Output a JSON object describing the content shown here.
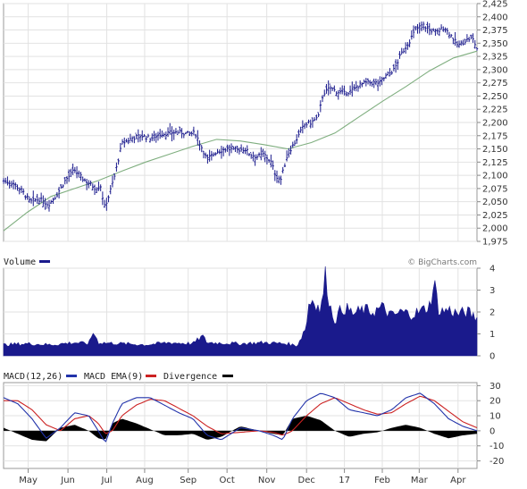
{
  "chart_data": [
    {
      "type": "ohlc",
      "name": "price-panel",
      "title": "",
      "ylim": [
        1975,
        2425
      ],
      "y_ticks": [
        1975,
        2000,
        2025,
        2050,
        2075,
        2100,
        2125,
        2150,
        2175,
        2200,
        2225,
        2250,
        2275,
        2300,
        2325,
        2350,
        2375,
        2400,
        2425
      ],
      "price_color": "#1a1a8c",
      "moving_average_color": "#7fae7f",
      "price_path": [
        [
          0,
          2090
        ],
        [
          0.02,
          2085
        ],
        [
          0.04,
          2070
        ],
        [
          0.055,
          2050
        ],
        [
          0.075,
          2055
        ],
        [
          0.095,
          2045
        ],
        [
          0.11,
          2060
        ],
        [
          0.13,
          2090
        ],
        [
          0.15,
          2110
        ],
        [
          0.165,
          2095
        ],
        [
          0.18,
          2085
        ],
        [
          0.195,
          2075
        ],
        [
          0.205,
          2080
        ],
        [
          0.213,
          2040
        ],
        [
          0.222,
          2060
        ],
        [
          0.235,
          2100
        ],
        [
          0.25,
          2160
        ],
        [
          0.27,
          2170
        ],
        [
          0.29,
          2175
        ],
        [
          0.31,
          2170
        ],
        [
          0.33,
          2178
        ],
        [
          0.35,
          2180
        ],
        [
          0.37,
          2182
        ],
        [
          0.39,
          2178
        ],
        [
          0.405,
          2180
        ],
        [
          0.415,
          2160
        ],
        [
          0.43,
          2130
        ],
        [
          0.45,
          2145
        ],
        [
          0.47,
          2150
        ],
        [
          0.49,
          2148
        ],
        [
          0.51,
          2150
        ],
        [
          0.52,
          2140
        ],
        [
          0.535,
          2135
        ],
        [
          0.55,
          2140
        ],
        [
          0.565,
          2125
        ],
        [
          0.575,
          2100
        ],
        [
          0.585,
          2090
        ],
        [
          0.6,
          2140
        ],
        [
          0.62,
          2170
        ],
        [
          0.635,
          2195
        ],
        [
          0.65,
          2200
        ],
        [
          0.665,
          2210
        ],
        [
          0.675,
          2255
        ],
        [
          0.69,
          2265
        ],
        [
          0.705,
          2258
        ],
        [
          0.72,
          2255
        ],
        [
          0.735,
          2260
        ],
        [
          0.75,
          2270
        ],
        [
          0.765,
          2275
        ],
        [
          0.78,
          2275
        ],
        [
          0.795,
          2275
        ],
        [
          0.81,
          2290
        ],
        [
          0.825,
          2300
        ],
        [
          0.84,
          2330
        ],
        [
          0.855,
          2350
        ],
        [
          0.87,
          2375
        ],
        [
          0.885,
          2385
        ],
        [
          0.9,
          2375
        ],
        [
          0.915,
          2370
        ],
        [
          0.93,
          2380
        ],
        [
          0.945,
          2365
        ],
        [
          0.96,
          2345
        ],
        [
          0.975,
          2355
        ],
        [
          0.99,
          2360
        ],
        [
          1,
          2340
        ]
      ],
      "moving_average_path": [
        [
          0,
          1995
        ],
        [
          0.05,
          2030
        ],
        [
          0.1,
          2060
        ],
        [
          0.15,
          2075
        ],
        [
          0.2,
          2090
        ],
        [
          0.25,
          2108
        ],
        [
          0.3,
          2125
        ],
        [
          0.35,
          2140
        ],
        [
          0.4,
          2155
        ],
        [
          0.45,
          2168
        ],
        [
          0.5,
          2165
        ],
        [
          0.55,
          2158
        ],
        [
          0.6,
          2150
        ],
        [
          0.65,
          2162
        ],
        [
          0.7,
          2180
        ],
        [
          0.75,
          2210
        ],
        [
          0.8,
          2240
        ],
        [
          0.85,
          2268
        ],
        [
          0.9,
          2298
        ],
        [
          0.95,
          2322
        ],
        [
          1,
          2335
        ]
      ]
    },
    {
      "type": "area",
      "name": "volume-panel",
      "label": "Volume",
      "credit": "© BigCharts.com",
      "ylim": [
        0,
        4
      ],
      "y_ticks": [
        0,
        1,
        2,
        3,
        4
      ],
      "color": "#1a1a8c",
      "values_path": [
        [
          0,
          0.5
        ],
        [
          0.05,
          0.55
        ],
        [
          0.1,
          0.5
        ],
        [
          0.15,
          0.6
        ],
        [
          0.18,
          0.55
        ],
        [
          0.19,
          1.1
        ],
        [
          0.2,
          0.6
        ],
        [
          0.25,
          0.55
        ],
        [
          0.3,
          0.5
        ],
        [
          0.35,
          0.6
        ],
        [
          0.4,
          0.55
        ],
        [
          0.42,
          0.9
        ],
        [
          0.43,
          0.6
        ],
        [
          0.5,
          0.55
        ],
        [
          0.55,
          0.6
        ],
        [
          0.6,
          0.55
        ],
        [
          0.62,
          0.45
        ],
        [
          0.63,
          0.9
        ],
        [
          0.64,
          1.4
        ],
        [
          0.645,
          2.4
        ],
        [
          0.655,
          2.6
        ],
        [
          0.67,
          2.0
        ],
        [
          0.68,
          3.7
        ],
        [
          0.69,
          2.2
        ],
        [
          0.7,
          1.6
        ],
        [
          0.71,
          2.0
        ],
        [
          0.72,
          2.2
        ],
        [
          0.74,
          1.9
        ],
        [
          0.76,
          2.1
        ],
        [
          0.78,
          2.0
        ],
        [
          0.8,
          2.2
        ],
        [
          0.82,
          1.8
        ],
        [
          0.84,
          2.0
        ],
        [
          0.86,
          1.9
        ],
        [
          0.88,
          2.0
        ],
        [
          0.9,
          2.3
        ],
        [
          0.91,
          3.3
        ],
        [
          0.92,
          2.0
        ],
        [
          0.94,
          2.1
        ],
        [
          0.96,
          1.9
        ],
        [
          0.98,
          2.0
        ],
        [
          1,
          1.7
        ]
      ]
    },
    {
      "type": "line",
      "name": "macd-panel",
      "ylim": [
        -25,
        32
      ],
      "y_ticks": [
        -20,
        -10,
        0,
        10,
        20,
        30
      ],
      "series": [
        {
          "name": "MACD(12,26)",
          "color": "#2233aa",
          "path": [
            [
              0,
              22
            ],
            [
              0.03,
              18
            ],
            [
              0.06,
              8
            ],
            [
              0.09,
              -5
            ],
            [
              0.12,
              2
            ],
            [
              0.15,
              12
            ],
            [
              0.18,
              10
            ],
            [
              0.2,
              0
            ],
            [
              0.215,
              -8
            ],
            [
              0.23,
              5
            ],
            [
              0.25,
              18
            ],
            [
              0.28,
              22
            ],
            [
              0.31,
              22
            ],
            [
              0.34,
              17
            ],
            [
              0.37,
              12
            ],
            [
              0.4,
              8
            ],
            [
              0.43,
              -3
            ],
            [
              0.46,
              -6
            ],
            [
              0.5,
              2
            ],
            [
              0.54,
              0
            ],
            [
              0.57,
              -3
            ],
            [
              0.59,
              -6
            ],
            [
              0.61,
              8
            ],
            [
              0.64,
              20
            ],
            [
              0.67,
              25
            ],
            [
              0.7,
              22
            ],
            [
              0.73,
              14
            ],
            [
              0.76,
              12
            ],
            [
              0.79,
              10
            ],
            [
              0.82,
              14
            ],
            [
              0.85,
              22
            ],
            [
              0.88,
              25
            ],
            [
              0.91,
              18
            ],
            [
              0.94,
              8
            ],
            [
              0.97,
              3
            ],
            [
              1,
              0
            ]
          ]
        },
        {
          "name": "MACD EMA(9)",
          "color": "#cc2222",
          "path": [
            [
              0,
              20
            ],
            [
              0.03,
              20
            ],
            [
              0.06,
              14
            ],
            [
              0.09,
              4
            ],
            [
              0.12,
              0
            ],
            [
              0.15,
              8
            ],
            [
              0.18,
              10
            ],
            [
              0.2,
              5
            ],
            [
              0.215,
              -2
            ],
            [
              0.23,
              0
            ],
            [
              0.25,
              10
            ],
            [
              0.28,
              17
            ],
            [
              0.31,
              21
            ],
            [
              0.34,
              20
            ],
            [
              0.37,
              15
            ],
            [
              0.4,
              10
            ],
            [
              0.43,
              3
            ],
            [
              0.46,
              -2
            ],
            [
              0.5,
              -1
            ],
            [
              0.54,
              0
            ],
            [
              0.57,
              -1
            ],
            [
              0.59,
              -3
            ],
            [
              0.61,
              0
            ],
            [
              0.64,
              10
            ],
            [
              0.67,
              18
            ],
            [
              0.7,
              22
            ],
            [
              0.73,
              18
            ],
            [
              0.76,
              14
            ],
            [
              0.79,
              11
            ],
            [
              0.82,
              12
            ],
            [
              0.85,
              18
            ],
            [
              0.88,
              23
            ],
            [
              0.91,
              20
            ],
            [
              0.94,
              13
            ],
            [
              0.97,
              6
            ],
            [
              1,
              2
            ]
          ]
        },
        {
          "name": "Divergence",
          "color": "#000000",
          "type": "area",
          "path": [
            [
              0,
              2
            ],
            [
              0.03,
              -2
            ],
            [
              0.06,
              -6
            ],
            [
              0.09,
              -7
            ],
            [
              0.12,
              2
            ],
            [
              0.15,
              4
            ],
            [
              0.18,
              0
            ],
            [
              0.2,
              -5
            ],
            [
              0.215,
              -6
            ],
            [
              0.23,
              5
            ],
            [
              0.25,
              8
            ],
            [
              0.28,
              5
            ],
            [
              0.31,
              1
            ],
            [
              0.34,
              -3
            ],
            [
              0.37,
              -3
            ],
            [
              0.4,
              -2
            ],
            [
              0.43,
              -6
            ],
            [
              0.46,
              -4
            ],
            [
              0.5,
              3
            ],
            [
              0.54,
              0
            ],
            [
              0.57,
              -2
            ],
            [
              0.59,
              -3
            ],
            [
              0.61,
              8
            ],
            [
              0.64,
              10
            ],
            [
              0.67,
              7
            ],
            [
              0.7,
              0
            ],
            [
              0.73,
              -4
            ],
            [
              0.76,
              -2
            ],
            [
              0.79,
              -1
            ],
            [
              0.82,
              2
            ],
            [
              0.85,
              4
            ],
            [
              0.88,
              2
            ],
            [
              0.91,
              -2
            ],
            [
              0.94,
              -5
            ],
            [
              0.97,
              -3
            ],
            [
              1,
              -2
            ]
          ]
        }
      ]
    }
  ],
  "x_axis": {
    "labels": [
      "May",
      "Jun",
      "Jul",
      "Aug",
      "Sep",
      "Oct",
      "Nov",
      "Dec",
      "17",
      "Feb",
      "Mar",
      "Apr"
    ],
    "label_positions": [
      0.052,
      0.136,
      0.218,
      0.298,
      0.39,
      0.472,
      0.556,
      0.64,
      0.72,
      0.8,
      0.878,
      0.96
    ]
  }
}
